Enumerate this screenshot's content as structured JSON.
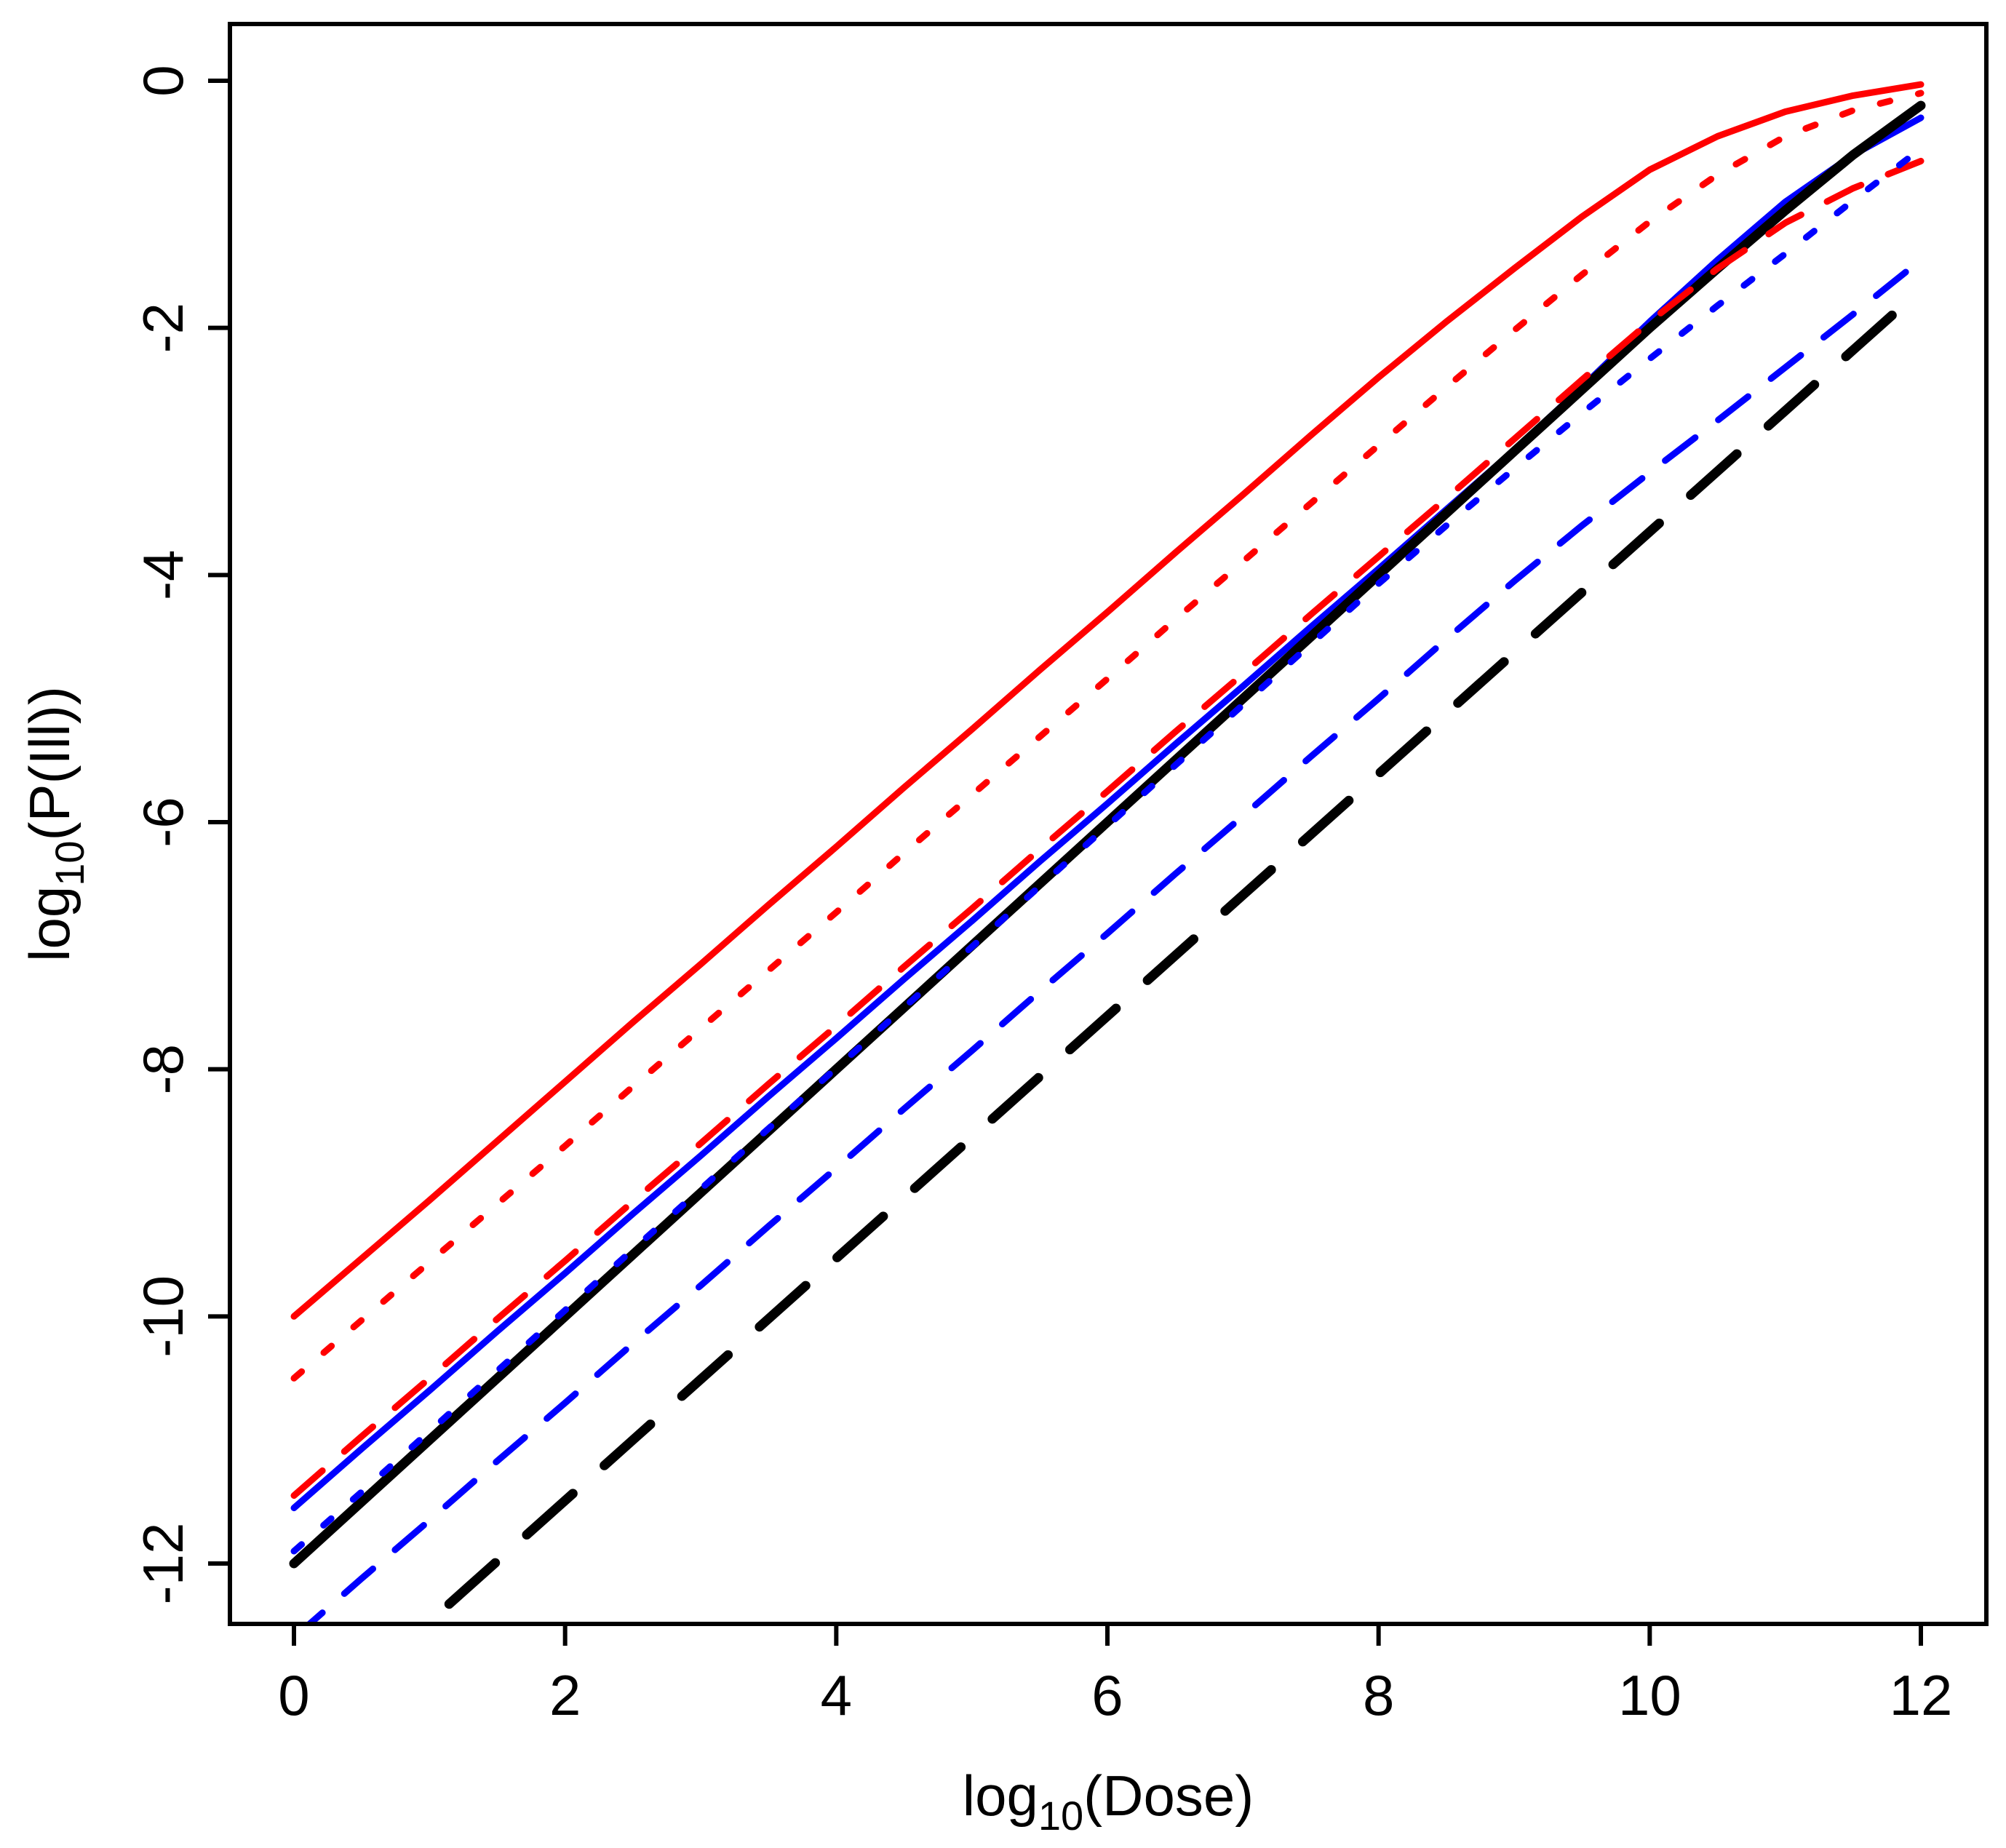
{
  "figure": {
    "background_color": "#ffffff",
    "foreground_color": "#000000",
    "xaxis_title": {
      "prefix": "log",
      "sub": "10",
      "suffix": "(Dose)"
    },
    "yaxis_title": {
      "prefix": "log",
      "sub": "10",
      "suffix": "(P(Ill))"
    }
  },
  "chart_data": {
    "type": "line",
    "title": "",
    "xlabel": "log10(Dose)",
    "ylabel": "log10(P(Ill))",
    "xlim": [
      -0.47,
      12.48
    ],
    "ylim": [
      -12.49,
      0.46
    ],
    "x_ticks": [
      0,
      2,
      4,
      6,
      8,
      10,
      12
    ],
    "y_ticks": [
      0,
      -2,
      -4,
      -6,
      -8,
      -10,
      -12
    ],
    "grid": false,
    "legend_position": "none",
    "colors": {
      "red": "#ff0000",
      "blue": "#0000ff",
      "black": "#000000"
    },
    "series": [
      {
        "name": "red-solid",
        "color": "#ff0000",
        "linetype": "solid",
        "linewidth": 9,
        "points": [
          [
            0,
            -10.0
          ],
          [
            0.5,
            -9.53
          ],
          [
            1,
            -9.06
          ],
          [
            1.5,
            -8.58
          ],
          [
            2,
            -8.1
          ],
          [
            2.5,
            -7.62
          ],
          [
            3,
            -7.15
          ],
          [
            3.5,
            -6.67
          ],
          [
            4,
            -6.2
          ],
          [
            4.5,
            -5.72
          ],
          [
            5,
            -5.25
          ],
          [
            5.5,
            -4.77
          ],
          [
            6,
            -4.3
          ],
          [
            6.5,
            -3.82
          ],
          [
            7,
            -3.35
          ],
          [
            7.5,
            -2.87
          ],
          [
            8,
            -2.4
          ],
          [
            8.5,
            -1.95
          ],
          [
            9,
            -1.52
          ],
          [
            9.5,
            -1.1
          ],
          [
            10,
            -0.72
          ],
          [
            10.5,
            -0.45
          ],
          [
            11,
            -0.25
          ],
          [
            11.5,
            -0.12
          ],
          [
            12,
            -0.03
          ]
        ]
      },
      {
        "name": "blue-solid",
        "color": "#0000ff",
        "linetype": "solid",
        "linewidth": 9,
        "points": [
          [
            0,
            -11.55
          ],
          [
            0.5,
            -11.07
          ],
          [
            1,
            -10.6
          ],
          [
            1.5,
            -10.12
          ],
          [
            2,
            -9.65
          ],
          [
            2.5,
            -9.17
          ],
          [
            3,
            -8.7
          ],
          [
            3.5,
            -8.22
          ],
          [
            4,
            -7.75
          ],
          [
            4.5,
            -7.27
          ],
          [
            5,
            -6.8
          ],
          [
            5.5,
            -6.32
          ],
          [
            6,
            -5.85
          ],
          [
            6.5,
            -5.37
          ],
          [
            7,
            -4.9
          ],
          [
            7.5,
            -4.42
          ],
          [
            8,
            -3.95
          ],
          [
            8.5,
            -3.47
          ],
          [
            9,
            -2.99
          ],
          [
            9.5,
            -2.48
          ],
          [
            10,
            -1.95
          ],
          [
            10.5,
            -1.45
          ],
          [
            11,
            -0.98
          ],
          [
            11.5,
            -0.6
          ],
          [
            12,
            -0.3
          ]
        ]
      },
      {
        "name": "black-solid",
        "color": "#000000",
        "linetype": "solid",
        "linewidth": 13,
        "points": [
          [
            0,
            -12.0
          ],
          [
            0.5,
            -11.5
          ],
          [
            1,
            -11.0
          ],
          [
            1.5,
            -10.5
          ],
          [
            2,
            -10.0
          ],
          [
            2.5,
            -9.5
          ],
          [
            3,
            -9.0
          ],
          [
            3.5,
            -8.5
          ],
          [
            4,
            -8.0
          ],
          [
            4.5,
            -7.5
          ],
          [
            5,
            -7.0
          ],
          [
            5.5,
            -6.5
          ],
          [
            6,
            -6.0
          ],
          [
            6.5,
            -5.5
          ],
          [
            7,
            -5.0
          ],
          [
            7.5,
            -4.5
          ],
          [
            8,
            -4.0
          ],
          [
            8.5,
            -3.5
          ],
          [
            9,
            -3.0
          ],
          [
            9.5,
            -2.5
          ],
          [
            10,
            -2.0
          ],
          [
            10.5,
            -1.52
          ],
          [
            11,
            -1.05
          ],
          [
            11.5,
            -0.6
          ],
          [
            12,
            -0.2
          ]
        ]
      },
      {
        "name": "red-dotted",
        "color": "#ff0000",
        "linetype": "dotted",
        "linewidth": 9,
        "points": [
          [
            0,
            -10.5
          ],
          [
            0.5,
            -10.03
          ],
          [
            1,
            -9.56
          ],
          [
            1.5,
            -9.09
          ],
          [
            2,
            -8.62
          ],
          [
            2.5,
            -8.14
          ],
          [
            3,
            -7.67
          ],
          [
            3.5,
            -7.2
          ],
          [
            4,
            -6.73
          ],
          [
            4.5,
            -6.25
          ],
          [
            5,
            -5.78
          ],
          [
            5.5,
            -5.31
          ],
          [
            6,
            -4.84
          ],
          [
            6.5,
            -4.36
          ],
          [
            7,
            -3.89
          ],
          [
            7.5,
            -3.42
          ],
          [
            8,
            -2.95
          ],
          [
            8.5,
            -2.48
          ],
          [
            9,
            -2.02
          ],
          [
            9.5,
            -1.57
          ],
          [
            10,
            -1.14
          ],
          [
            10.5,
            -0.76
          ],
          [
            11,
            -0.45
          ],
          [
            11.5,
            -0.24
          ],
          [
            12,
            -0.1
          ]
        ]
      },
      {
        "name": "red-dashed",
        "color": "#ff0000",
        "linetype": "dashed",
        "linewidth": 9,
        "points": [
          [
            0,
            -11.45
          ],
          [
            0.5,
            -10.97
          ],
          [
            1,
            -10.5
          ],
          [
            1.5,
            -10.02
          ],
          [
            2,
            -9.55
          ],
          [
            2.5,
            -9.07
          ],
          [
            3,
            -8.6
          ],
          [
            3.5,
            -8.12
          ],
          [
            4,
            -7.65
          ],
          [
            4.5,
            -7.17
          ],
          [
            5,
            -6.7
          ],
          [
            5.5,
            -6.22
          ],
          [
            6,
            -5.75
          ],
          [
            6.5,
            -5.27
          ],
          [
            7,
            -4.8
          ],
          [
            7.5,
            -4.32
          ],
          [
            8,
            -3.85
          ],
          [
            8.5,
            -3.38
          ],
          [
            9,
            -2.9
          ],
          [
            9.5,
            -2.42
          ],
          [
            10,
            -1.95
          ],
          [
            10.5,
            -1.52
          ],
          [
            11,
            -1.15
          ],
          [
            11.5,
            -0.87
          ],
          [
            12,
            -0.65
          ]
        ]
      },
      {
        "name": "blue-dotted",
        "color": "#0000ff",
        "linetype": "dotted",
        "linewidth": 9,
        "points": [
          [
            0,
            -11.9
          ],
          [
            0.5,
            -11.42
          ],
          [
            1,
            -10.93
          ],
          [
            1.5,
            -10.44
          ],
          [
            2,
            -9.95
          ],
          [
            2.5,
            -9.46
          ],
          [
            3,
            -8.97
          ],
          [
            3.5,
            -8.48
          ],
          [
            4,
            -7.99
          ],
          [
            4.5,
            -7.5
          ],
          [
            5,
            -7.01
          ],
          [
            5.5,
            -6.52
          ],
          [
            6,
            -6.03
          ],
          [
            6.5,
            -5.54
          ],
          [
            7,
            -5.05
          ],
          [
            7.5,
            -4.56
          ],
          [
            8,
            -4.07
          ],
          [
            8.5,
            -3.6
          ],
          [
            9,
            -3.14
          ],
          [
            9.5,
            -2.69
          ],
          [
            10,
            -2.25
          ],
          [
            10.5,
            -1.82
          ],
          [
            11,
            -1.4
          ],
          [
            11.5,
            -0.97
          ],
          [
            12,
            -0.55
          ]
        ]
      },
      {
        "name": "blue-dashed",
        "color": "#0000ff",
        "linetype": "dashed",
        "linewidth": 9,
        "points": [
          [
            0,
            -12.6
          ],
          [
            0.5,
            -12.12
          ],
          [
            1,
            -11.65
          ],
          [
            1.5,
            -11.17
          ],
          [
            2,
            -10.7
          ],
          [
            2.5,
            -10.22
          ],
          [
            3,
            -9.75
          ],
          [
            3.5,
            -9.27
          ],
          [
            4,
            -8.8
          ],
          [
            4.5,
            -8.32
          ],
          [
            5,
            -7.85
          ],
          [
            5.5,
            -7.37
          ],
          [
            6,
            -6.9
          ],
          [
            6.5,
            -6.42
          ],
          [
            7,
            -5.95
          ],
          [
            7.5,
            -5.47
          ],
          [
            8,
            -5.0
          ],
          [
            8.5,
            -4.52
          ],
          [
            9,
            -4.05
          ],
          [
            9.5,
            -3.6
          ],
          [
            10,
            -3.17
          ],
          [
            10.5,
            -2.75
          ],
          [
            11,
            -2.32
          ],
          [
            11.5,
            -1.89
          ],
          [
            12,
            -1.45
          ]
        ]
      },
      {
        "name": "black-dashed",
        "color": "#000000",
        "linetype": "longdash",
        "linewidth": 13,
        "points": [
          [
            0,
            -13.45
          ],
          [
            0.5,
            -12.96
          ],
          [
            1,
            -12.47
          ],
          [
            1.5,
            -11.98
          ],
          [
            2,
            -11.49
          ],
          [
            2.5,
            -11.0
          ],
          [
            3,
            -10.51
          ],
          [
            3.5,
            -10.02
          ],
          [
            4,
            -9.53
          ],
          [
            4.5,
            -9.04
          ],
          [
            5,
            -8.55
          ],
          [
            5.5,
            -8.06
          ],
          [
            6,
            -7.57
          ],
          [
            6.5,
            -7.08
          ],
          [
            7,
            -6.59
          ],
          [
            7.5,
            -6.1
          ],
          [
            8,
            -5.61
          ],
          [
            8.5,
            -5.12
          ],
          [
            9,
            -4.63
          ],
          [
            9.5,
            -4.14
          ],
          [
            10,
            -3.65
          ],
          [
            10.5,
            -3.16
          ],
          [
            11,
            -2.67
          ],
          [
            11.5,
            -2.18
          ],
          [
            12,
            -1.69
          ]
        ]
      }
    ]
  }
}
